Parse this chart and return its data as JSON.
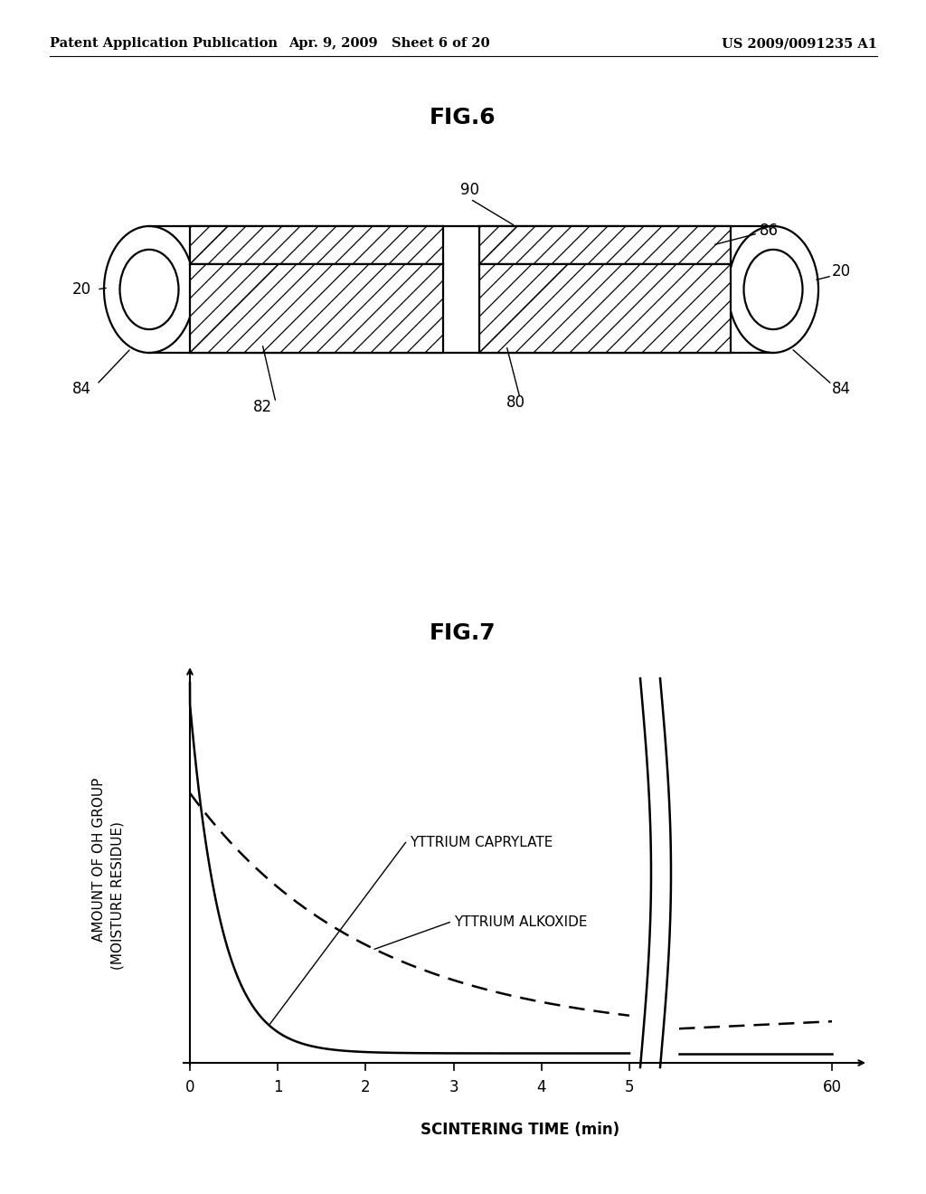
{
  "bg_color": "#ffffff",
  "header_left": "Patent Application Publication",
  "header_mid": "Apr. 9, 2009   Sheet 6 of 20",
  "header_right": "US 2009/0091235 A1",
  "fig6_title": "FIG.6",
  "fig7_title": "FIG.7",
  "fig7": {
    "ylabel_line1": "AMOUNT OF OH GROUP",
    "ylabel_line2": "(MOISTURE RESIDUE)",
    "xlabel": "SCINTERING TIME (min)",
    "caprylate_label": "YTTRIUM CAPRYLATE",
    "alkoxide_label": "YTTRIUM ALKOXIDE"
  }
}
